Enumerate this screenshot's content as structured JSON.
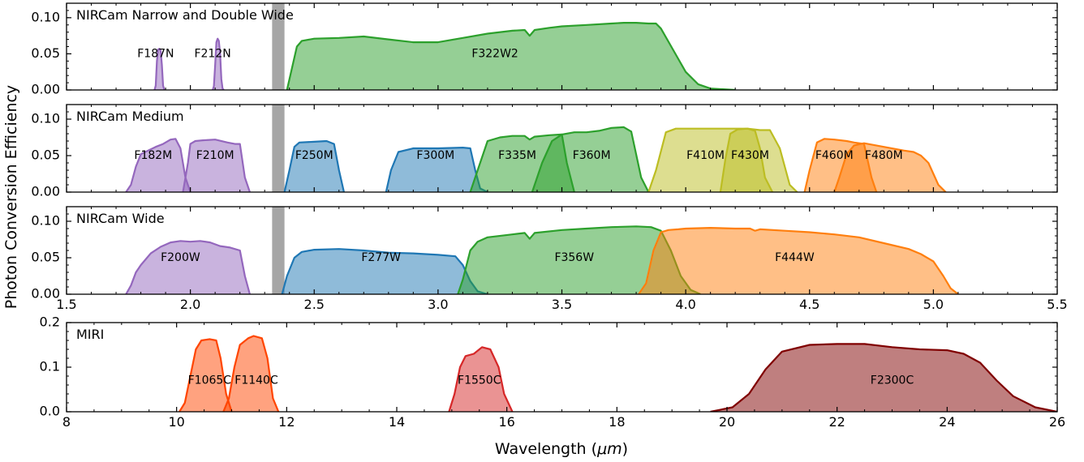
{
  "figure": {
    "shared_ylabel": "Photon Conversion Efficiency",
    "xlabel_prefix": "Wavelength (",
    "xlabel_unit": "μm",
    "xlabel_suffix": ")"
  },
  "chart_data": [
    {
      "type": "area",
      "title": "NIRCam Narrow and Double Wide",
      "xlim": [
        1.5,
        5.5
      ],
      "ylim": [
        0,
        0.12
      ],
      "yticks": [
        "0.00",
        "0.05",
        "0.10"
      ],
      "xticks": [],
      "grid": false,
      "series": [
        {
          "name": "F187N",
          "color": "#9467bd",
          "label_at": [
            1.86,
            0.05
          ],
          "peak": 0.057,
          "x": [
            1.855,
            1.86,
            1.865,
            1.87,
            1.875,
            1.88,
            1.885,
            1.89,
            1.895
          ],
          "y": [
            0,
            0.006,
            0.04,
            0.056,
            0.057,
            0.054,
            0.035,
            0.006,
            0
          ]
        },
        {
          "name": "F212N",
          "color": "#9467bd",
          "label_at": [
            2.09,
            0.05
          ],
          "peak": 0.071,
          "x": [
            2.09,
            2.095,
            2.1,
            2.105,
            2.11,
            2.115,
            2.12,
            2.125,
            2.13,
            2.135
          ],
          "y": [
            0,
            0.005,
            0.035,
            0.066,
            0.071,
            0.068,
            0.05,
            0.015,
            0.002,
            0
          ]
        },
        {
          "name": "F322W2",
          "color": "#2ca02c",
          "label_at": [
            3.23,
            0.05
          ],
          "x": [
            2.39,
            2.41,
            2.43,
            2.45,
            2.5,
            2.6,
            2.7,
            2.8,
            2.9,
            3.0,
            3.1,
            3.2,
            3.3,
            3.35,
            3.37,
            3.39,
            3.45,
            3.5,
            3.6,
            3.7,
            3.75,
            3.8,
            3.85,
            3.88,
            3.9,
            3.95,
            4.0,
            4.05,
            4.1,
            4.2
          ],
          "y": [
            0,
            0.03,
            0.06,
            0.068,
            0.071,
            0.072,
            0.074,
            0.07,
            0.066,
            0.066,
            0.072,
            0.078,
            0.082,
            0.083,
            0.075,
            0.083,
            0.086,
            0.088,
            0.09,
            0.092,
            0.093,
            0.093,
            0.092,
            0.092,
            0.085,
            0.055,
            0.025,
            0.008,
            0.002,
            0
          ]
        }
      ]
    },
    {
      "type": "area",
      "title": "NIRCam Medium",
      "xlim": [
        1.5,
        5.5
      ],
      "ylim": [
        0,
        0.12
      ],
      "yticks": [
        "0.00",
        "0.05",
        "0.10"
      ],
      "xticks": [],
      "grid": false,
      "series": [
        {
          "name": "F182M",
          "color": "#9467bd",
          "label_at": [
            1.85,
            0.05
          ],
          "x": [
            1.74,
            1.76,
            1.78,
            1.8,
            1.83,
            1.86,
            1.89,
            1.92,
            1.94,
            1.96,
            1.98,
            2.0
          ],
          "y": [
            0,
            0.01,
            0.035,
            0.052,
            0.057,
            0.062,
            0.066,
            0.072,
            0.073,
            0.06,
            0.02,
            0
          ]
        },
        {
          "name": "F210M",
          "color": "#9467bd",
          "label_at": [
            2.1,
            0.05
          ],
          "x": [
            1.97,
            1.99,
            2.0,
            2.02,
            2.05,
            2.1,
            2.15,
            2.18,
            2.2,
            2.22,
            2.24
          ],
          "y": [
            0,
            0.04,
            0.066,
            0.07,
            0.071,
            0.072,
            0.068,
            0.066,
            0.066,
            0.02,
            0
          ]
        },
        {
          "name": "F250M",
          "color": "#1f77b4",
          "label_at": [
            2.5,
            0.05
          ],
          "x": [
            2.38,
            2.4,
            2.42,
            2.44,
            2.5,
            2.55,
            2.58,
            2.6,
            2.62
          ],
          "y": [
            0,
            0.03,
            0.062,
            0.068,
            0.069,
            0.07,
            0.066,
            0.03,
            0
          ]
        },
        {
          "name": "F300M",
          "color": "#1f77b4",
          "label_at": [
            2.99,
            0.05
          ],
          "x": [
            2.79,
            2.81,
            2.84,
            2.9,
            3.0,
            3.1,
            3.13,
            3.15,
            3.17,
            3.2
          ],
          "y": [
            0,
            0.03,
            0.055,
            0.06,
            0.06,
            0.061,
            0.06,
            0.03,
            0.005,
            0
          ]
        },
        {
          "name": "F335M",
          "color": "#2ca02c",
          "label_at": [
            3.32,
            0.05
          ],
          "x": [
            3.13,
            3.16,
            3.2,
            3.25,
            3.3,
            3.35,
            3.37,
            3.39,
            3.45,
            3.5,
            3.52,
            3.55
          ],
          "y": [
            0,
            0.03,
            0.07,
            0.075,
            0.077,
            0.077,
            0.072,
            0.076,
            0.078,
            0.079,
            0.04,
            0
          ]
        },
        {
          "name": "F360M",
          "color": "#2ca02c",
          "label_at": [
            3.62,
            0.05
          ],
          "x": [
            3.38,
            3.42,
            3.46,
            3.5,
            3.55,
            3.6,
            3.65,
            3.7,
            3.75,
            3.78,
            3.82,
            3.85
          ],
          "y": [
            0,
            0.04,
            0.07,
            0.079,
            0.082,
            0.082,
            0.084,
            0.088,
            0.089,
            0.083,
            0.02,
            0
          ]
        },
        {
          "name": "F410M",
          "color": "#bcbd22",
          "label_at": [
            4.08,
            0.05
          ],
          "x": [
            3.85,
            3.88,
            3.92,
            3.96,
            4.0,
            4.1,
            4.2,
            4.25,
            4.3,
            4.34,
            4.38,
            4.42,
            4.45
          ],
          "y": [
            0,
            0.03,
            0.082,
            0.087,
            0.087,
            0.087,
            0.087,
            0.087,
            0.085,
            0.085,
            0.06,
            0.01,
            0
          ]
        },
        {
          "name": "F430M",
          "color": "#bcbd22",
          "label_at": [
            4.26,
            0.05
          ],
          "x": [
            4.14,
            4.16,
            4.18,
            4.21,
            4.25,
            4.28,
            4.3,
            4.32,
            4.35
          ],
          "y": [
            0,
            0.045,
            0.08,
            0.086,
            0.087,
            0.084,
            0.06,
            0.02,
            0
          ]
        },
        {
          "name": "F460M",
          "color": "#ff7f0e",
          "label_at": [
            4.6,
            0.05
          ],
          "x": [
            4.48,
            4.5,
            4.53,
            4.56,
            4.6,
            4.65,
            4.68,
            4.72,
            4.75,
            4.77
          ],
          "y": [
            0,
            0.03,
            0.068,
            0.073,
            0.072,
            0.07,
            0.068,
            0.066,
            0.02,
            0
          ]
        },
        {
          "name": "F480M",
          "color": "#ff7f0e",
          "label_at": [
            4.8,
            0.05
          ],
          "x": [
            4.6,
            4.62,
            4.65,
            4.68,
            4.72,
            4.8,
            4.88,
            4.92,
            4.95,
            4.98,
            5.02,
            5.05
          ],
          "y": [
            0,
            0.02,
            0.052,
            0.064,
            0.067,
            0.062,
            0.057,
            0.055,
            0.05,
            0.04,
            0.01,
            0
          ]
        }
      ]
    },
    {
      "type": "area",
      "title": "NIRCam Wide",
      "xlim": [
        1.5,
        5.5
      ],
      "ylim": [
        0,
        0.12
      ],
      "yticks": [
        "0.00",
        "0.05",
        "0.10"
      ],
      "xticks": [
        "1.5",
        "2.0",
        "2.5",
        "3.0",
        "3.5",
        "4.0",
        "4.5",
        "5.0",
        "5.5"
      ],
      "grid": false,
      "series": [
        {
          "name": "F200W",
          "color": "#9467bd",
          "label_at": [
            1.96,
            0.05
          ],
          "x": [
            1.74,
            1.76,
            1.78,
            1.8,
            1.84,
            1.88,
            1.92,
            1.96,
            2.0,
            2.04,
            2.08,
            2.12,
            2.16,
            2.2,
            2.22,
            2.24
          ],
          "y": [
            0,
            0.012,
            0.03,
            0.04,
            0.056,
            0.065,
            0.071,
            0.073,
            0.072,
            0.073,
            0.071,
            0.066,
            0.064,
            0.06,
            0.025,
            0
          ]
        },
        {
          "name": "F277W",
          "color": "#1f77b4",
          "label_at": [
            2.77,
            0.05
          ],
          "x": [
            2.37,
            2.39,
            2.42,
            2.45,
            2.5,
            2.6,
            2.7,
            2.8,
            2.9,
            3.0,
            3.07,
            3.1,
            3.13,
            3.16,
            3.2
          ],
          "y": [
            0,
            0.025,
            0.05,
            0.058,
            0.061,
            0.062,
            0.06,
            0.057,
            0.056,
            0.054,
            0.052,
            0.04,
            0.018,
            0.004,
            0
          ]
        },
        {
          "name": "F356W",
          "color": "#2ca02c",
          "label_at": [
            3.55,
            0.05
          ],
          "x": [
            3.08,
            3.1,
            3.13,
            3.16,
            3.2,
            3.3,
            3.35,
            3.37,
            3.39,
            3.5,
            3.6,
            3.7,
            3.8,
            3.86,
            3.9,
            3.94,
            3.98,
            4.02,
            4.06
          ],
          "y": [
            0,
            0.02,
            0.06,
            0.072,
            0.078,
            0.082,
            0.084,
            0.076,
            0.084,
            0.088,
            0.09,
            0.092,
            0.093,
            0.092,
            0.087,
            0.06,
            0.025,
            0.006,
            0
          ]
        },
        {
          "name": "F444W",
          "color": "#ff7f0e",
          "label_at": [
            4.44,
            0.05
          ],
          "x": [
            3.81,
            3.84,
            3.87,
            3.9,
            3.93,
            3.97,
            4.0,
            4.1,
            4.2,
            4.26,
            4.28,
            4.3,
            4.4,
            4.5,
            4.6,
            4.7,
            4.8,
            4.9,
            4.95,
            5.0,
            5.04,
            5.07,
            5.1
          ],
          "y": [
            0,
            0.015,
            0.06,
            0.085,
            0.088,
            0.089,
            0.09,
            0.091,
            0.09,
            0.09,
            0.087,
            0.089,
            0.087,
            0.085,
            0.082,
            0.078,
            0.07,
            0.062,
            0.055,
            0.045,
            0.025,
            0.008,
            0
          ]
        }
      ]
    },
    {
      "type": "area",
      "title": "MIRI",
      "xlim": [
        8,
        26
      ],
      "ylim": [
        0,
        0.2
      ],
      "yticks": [
        "0.0",
        "0.1",
        "0.2"
      ],
      "xticks": [
        "8",
        "10",
        "12",
        "14",
        "16",
        "18",
        "20",
        "22",
        "24",
        "26"
      ],
      "grid": false,
      "series": [
        {
          "name": "F1065C",
          "color": "#ff4500",
          "label_at": [
            10.6,
            0.07
          ],
          "x": [
            10.05,
            10.15,
            10.25,
            10.35,
            10.45,
            10.6,
            10.72,
            10.8,
            10.9,
            11.0
          ],
          "y": [
            0,
            0.02,
            0.08,
            0.14,
            0.16,
            0.163,
            0.16,
            0.12,
            0.04,
            0
          ]
        },
        {
          "name": "F1140C",
          "color": "#ff4500",
          "label_at": [
            11.45,
            0.07
          ],
          "x": [
            10.85,
            10.95,
            11.05,
            11.15,
            11.3,
            11.4,
            11.55,
            11.65,
            11.75,
            11.85
          ],
          "y": [
            0,
            0.03,
            0.1,
            0.15,
            0.165,
            0.17,
            0.165,
            0.12,
            0.03,
            0
          ]
        },
        {
          "name": "F1550C",
          "color": "#d62728",
          "label_at": [
            15.5,
            0.07
          ],
          "x": [
            14.95,
            15.05,
            15.15,
            15.25,
            15.4,
            15.55,
            15.7,
            15.85,
            15.95,
            16.1
          ],
          "y": [
            0,
            0.04,
            0.1,
            0.125,
            0.13,
            0.145,
            0.14,
            0.1,
            0.04,
            0
          ]
        },
        {
          "name": "F2300C",
          "color": "#800000",
          "label_at": [
            23.0,
            0.07
          ],
          "x": [
            19.7,
            20.1,
            20.4,
            20.7,
            21.0,
            21.5,
            22.0,
            22.5,
            23.0,
            23.5,
            24.0,
            24.3,
            24.6,
            24.9,
            25.2,
            25.6,
            26.0
          ],
          "y": [
            0,
            0.01,
            0.04,
            0.095,
            0.135,
            0.15,
            0.152,
            0.152,
            0.145,
            0.14,
            0.138,
            0.13,
            0.11,
            0.07,
            0.035,
            0.01,
            0
          ]
        }
      ]
    }
  ],
  "shaded_band": {
    "color": "#a6a6a6",
    "x": [
      2.33,
      2.38
    ]
  }
}
